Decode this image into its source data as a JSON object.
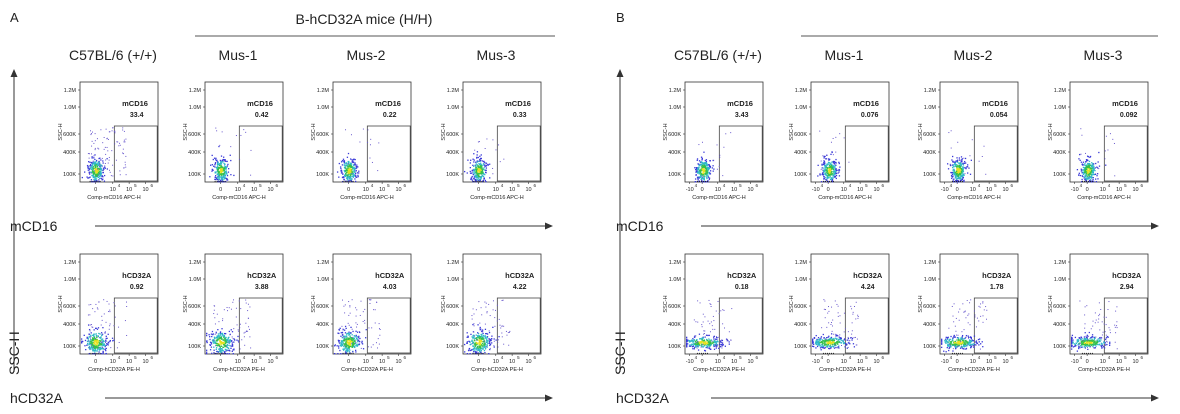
{
  "colors": {
    "axis": "#333333",
    "gate": "#444444",
    "density_low": "#3a3ad8",
    "density_mid": "#2fb8c8",
    "density_high": "#35c04a",
    "density_peak": "#e8e020",
    "scatter": "#6a5acd"
  },
  "panels": [
    {
      "letter": "A",
      "group_title": "B-hCD32A mice (H/H)",
      "y_axis_label": "SSC-H",
      "columns": [
        "C57BL/6 (+/+)",
        "Mus-1",
        "Mus-2",
        "Mus-3"
      ],
      "x_tick_labels": [
        "0",
        "10",
        "10",
        "10"
      ],
      "x_tick_exponents": [
        "",
        "4",
        "5",
        "6"
      ],
      "rows": [
        {
          "marker": "mCD16",
          "x_title": "Comp-mCD16 APC-H",
          "values": [
            "33.4",
            "0.42",
            "0.22",
            "0.33"
          ],
          "spread": "wide"
        },
        {
          "marker": "hCD32A",
          "x_title": "Comp-hCD32A PE-H",
          "values": [
            "0.92",
            "3.88",
            "4.03",
            "4.22"
          ],
          "spread": "mid"
        }
      ]
    },
    {
      "letter": "B",
      "group_title": "B-hCD32A mice (H/H)",
      "y_axis_label": "SSC-H",
      "columns": [
        "C57BL/6 (+/+)",
        "Mus-1",
        "Mus-2",
        "Mus-3"
      ],
      "x_tick_labels": [
        "-10",
        "0",
        "10",
        "10",
        "10"
      ],
      "x_tick_exponents": [
        "4",
        "",
        "4",
        "5",
        "6"
      ],
      "rows": [
        {
          "marker": "mCD16",
          "x_title": "Comp-mCD16 APC-H",
          "values": [
            "3.43",
            "0.076",
            "0.054",
            "0.092"
          ],
          "spread": "narrow"
        },
        {
          "marker": "hCD32A",
          "x_title": "Comp-hCD32A PE-H",
          "values": [
            "0.18",
            "4.24",
            "1.78",
            "2.94"
          ],
          "spread": "flat"
        }
      ]
    }
  ],
  "y_tick_labels": [
    "100K",
    "400K",
    "600K",
    "1.0M",
    "1.2M"
  ],
  "chart_data": [
    {
      "type": "scatter",
      "title": "A",
      "xlabel": "Comp-mCD16 APC-H",
      "ylabel": "SSC-H",
      "categories": [
        "C57BL/6 (+/+)",
        "Mus-1",
        "Mus-2",
        "Mus-3"
      ],
      "series": [
        {
          "name": "mCD16",
          "values": [
            33.4,
            0.42,
            0.22,
            0.33
          ]
        }
      ]
    },
    {
      "type": "scatter",
      "title": "A",
      "xlabel": "Comp-hCD32A PE-H",
      "ylabel": "SSC-H",
      "categories": [
        "C57BL/6 (+/+)",
        "Mus-1",
        "Mus-2",
        "Mus-3"
      ],
      "series": [
        {
          "name": "hCD32A",
          "values": [
            0.92,
            3.88,
            4.03,
            4.22
          ]
        }
      ]
    },
    {
      "type": "scatter",
      "title": "B",
      "xlabel": "Comp-mCD16 APC-H",
      "ylabel": "SSC-H",
      "categories": [
        "C57BL/6 (+/+)",
        "Mus-1",
        "Mus-2",
        "Mus-3"
      ],
      "series": [
        {
          "name": "mCD16",
          "values": [
            3.43,
            0.076,
            0.054,
            0.092
          ]
        }
      ]
    },
    {
      "type": "scatter",
      "title": "B",
      "xlabel": "Comp-hCD32A PE-H",
      "ylabel": "SSC-H",
      "categories": [
        "C57BL/6 (+/+)",
        "Mus-1",
        "Mus-2",
        "Mus-3"
      ],
      "series": [
        {
          "name": "hCD32A",
          "values": [
            0.18,
            4.24,
            1.78,
            2.94
          ]
        }
      ]
    }
  ]
}
